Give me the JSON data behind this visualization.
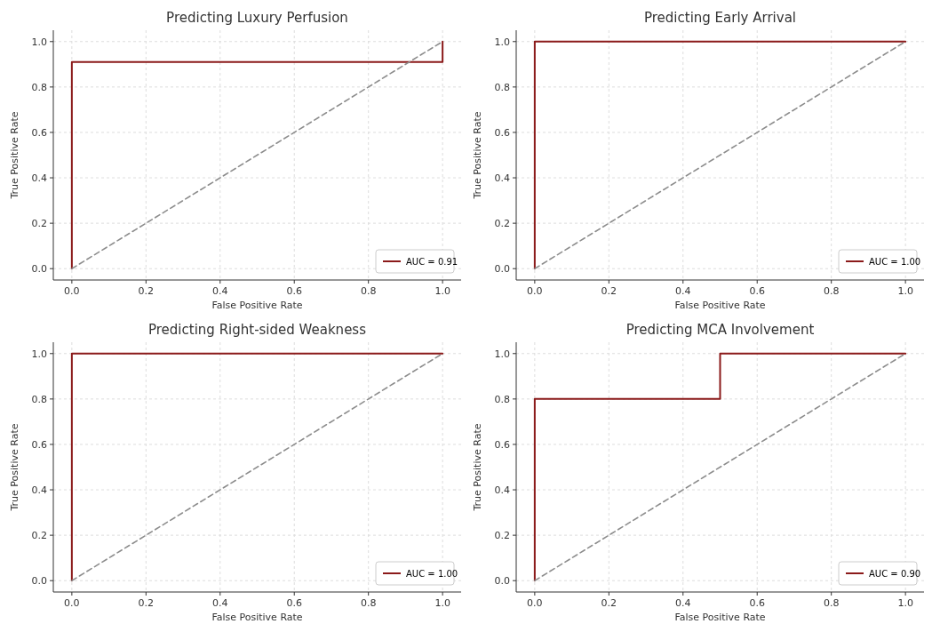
{
  "chart_data": [
    {
      "type": "line",
      "title": "Predicting Luxury Perfusion",
      "xlabel": "False Positive Rate",
      "ylabel": "True Positive Rate",
      "xlim": [
        -0.05,
        1.05
      ],
      "ylim": [
        -0.05,
        1.05
      ],
      "xticks": [
        {
          "value": 0,
          "label": "0.0"
        },
        {
          "value": 0.2,
          "label": "0.2"
        },
        {
          "value": 0.4,
          "label": "0.4"
        },
        {
          "value": 0.6,
          "label": "0.6"
        },
        {
          "value": 0.8,
          "label": "0.8"
        },
        {
          "value": 1,
          "label": "1.0"
        }
      ],
      "yticks": [
        {
          "value": 0,
          "label": "0.0"
        },
        {
          "value": 0.2,
          "label": "0.2"
        },
        {
          "value": 0.4,
          "label": "0.4"
        },
        {
          "value": 0.6,
          "label": "0.6"
        },
        {
          "value": 0.8,
          "label": "0.8"
        },
        {
          "value": 1,
          "label": "1.0"
        }
      ],
      "grid": true,
      "legend": "bottom right",
      "series": [
        {
          "name": "AUC = 0.91",
          "color": "#8b1a1a",
          "x": [
            0,
            0,
            1,
            1
          ],
          "values": [
            0,
            0.91,
            0.91,
            1
          ]
        },
        {
          "color": "#8c8c8c",
          "line_style": "dashed",
          "x": [
            0,
            1
          ],
          "values": [
            0,
            1
          ]
        }
      ]
    },
    {
      "type": "line",
      "title": "Predicting Early Arrival",
      "xlabel": "False Positive Rate",
      "ylabel": "True Positive Rate",
      "xlim": [
        -0.05,
        1.05
      ],
      "ylim": [
        -0.05,
        1.05
      ],
      "xticks": [
        {
          "value": 0,
          "label": "0.0"
        },
        {
          "value": 0.2,
          "label": "0.2"
        },
        {
          "value": 0.4,
          "label": "0.4"
        },
        {
          "value": 0.6,
          "label": "0.6"
        },
        {
          "value": 0.8,
          "label": "0.8"
        },
        {
          "value": 1,
          "label": "1.0"
        }
      ],
      "yticks": [
        {
          "value": 0,
          "label": "0.0"
        },
        {
          "value": 0.2,
          "label": "0.2"
        },
        {
          "value": 0.4,
          "label": "0.4"
        },
        {
          "value": 0.6,
          "label": "0.6"
        },
        {
          "value": 0.8,
          "label": "0.8"
        },
        {
          "value": 1,
          "label": "1.0"
        }
      ],
      "grid": true,
      "legend": "bottom right",
      "series": [
        {
          "name": "AUC = 1.00",
          "color": "#8b1a1a",
          "x": [
            0,
            0,
            1
          ],
          "values": [
            0,
            1,
            1
          ]
        },
        {
          "color": "#8c8c8c",
          "line_style": "dashed",
          "x": [
            0,
            1
          ],
          "values": [
            0,
            1
          ]
        }
      ]
    },
    {
      "type": "line",
      "title": "Predicting Right-sided Weakness",
      "xlabel": "False Positive Rate",
      "ylabel": "True Positive Rate",
      "xlim": [
        -0.05,
        1.05
      ],
      "ylim": [
        -0.05,
        1.05
      ],
      "xticks": [
        {
          "value": 0,
          "label": "0.0"
        },
        {
          "value": 0.2,
          "label": "0.2"
        },
        {
          "value": 0.4,
          "label": "0.4"
        },
        {
          "value": 0.6,
          "label": "0.6"
        },
        {
          "value": 0.8,
          "label": "0.8"
        },
        {
          "value": 1,
          "label": "1.0"
        }
      ],
      "yticks": [
        {
          "value": 0,
          "label": "0.0"
        },
        {
          "value": 0.2,
          "label": "0.2"
        },
        {
          "value": 0.4,
          "label": "0.4"
        },
        {
          "value": 0.6,
          "label": "0.6"
        },
        {
          "value": 0.8,
          "label": "0.8"
        },
        {
          "value": 1,
          "label": "1.0"
        }
      ],
      "grid": true,
      "legend": "bottom right",
      "series": [
        {
          "name": "AUC = 1.00",
          "color": "#8b1a1a",
          "x": [
            0,
            0,
            1
          ],
          "values": [
            0,
            1,
            1
          ]
        },
        {
          "color": "#8c8c8c",
          "line_style": "dashed",
          "x": [
            0,
            1
          ],
          "values": [
            0,
            1
          ]
        }
      ]
    },
    {
      "type": "line",
      "title": "Predicting MCA Involvement",
      "xlabel": "False Positive Rate",
      "ylabel": "True Positive Rate",
      "xlim": [
        -0.05,
        1.05
      ],
      "ylim": [
        -0.05,
        1.05
      ],
      "xticks": [
        {
          "value": 0,
          "label": "0.0"
        },
        {
          "value": 0.2,
          "label": "0.2"
        },
        {
          "value": 0.4,
          "label": "0.4"
        },
        {
          "value": 0.6,
          "label": "0.6"
        },
        {
          "value": 0.8,
          "label": "0.8"
        },
        {
          "value": 1,
          "label": "1.0"
        }
      ],
      "yticks": [
        {
          "value": 0,
          "label": "0.0"
        },
        {
          "value": 0.2,
          "label": "0.2"
        },
        {
          "value": 0.4,
          "label": "0.4"
        },
        {
          "value": 0.6,
          "label": "0.6"
        },
        {
          "value": 0.8,
          "label": "0.8"
        },
        {
          "value": 1,
          "label": "1.0"
        }
      ],
      "grid": true,
      "legend": "bottom right",
      "series": [
        {
          "name": "AUC = 0.90",
          "color": "#8b1a1a",
          "x": [
            0,
            0,
            0.5,
            0.5,
            1
          ],
          "values": [
            0,
            0.8,
            0.8,
            1,
            1
          ]
        },
        {
          "color": "#8c8c8c",
          "line_style": "dashed",
          "x": [
            0,
            1
          ],
          "values": [
            0,
            1
          ]
        }
      ]
    }
  ]
}
